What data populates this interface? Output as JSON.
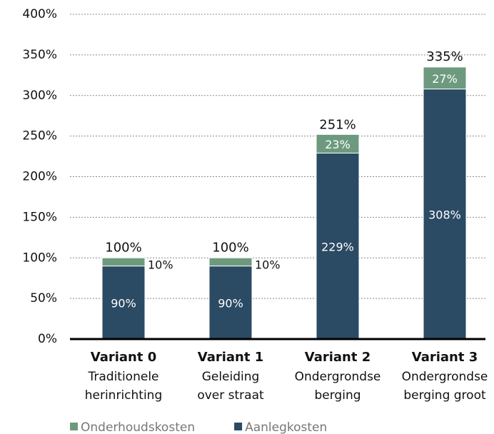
{
  "chart_data": {
    "type": "stacked_bar",
    "categories": [
      "Variant 0",
      "Variant 1",
      "Variant 2",
      "Variant 3"
    ],
    "category_details": [
      [
        "Traditionele",
        "herinrichting"
      ],
      [
        "Geleiding",
        "over straat"
      ],
      [
        "Ondergrondse",
        "berging"
      ],
      [
        "Ondergrondse",
        "berging groot"
      ]
    ],
    "series": [
      {
        "name": "Aanlegkosten",
        "color": "#2b4a63",
        "values": [
          90,
          90,
          229,
          308
        ],
        "value_labels": [
          "90%",
          "90%",
          "229%",
          "308%"
        ]
      },
      {
        "name": "Onderhoudskosten",
        "color": "#6d9a7e",
        "values": [
          10,
          10,
          23,
          27
        ],
        "value_labels": [
          "10%",
          "10%",
          "23%",
          "27%"
        ]
      }
    ],
    "totals": [
      100,
      100,
      251,
      335
    ],
    "total_labels": [
      "100%",
      "100%",
      "251%",
      "335%"
    ],
    "ylim": [
      0,
      400
    ],
    "yticks": [
      {
        "value": 0,
        "label": "0%"
      },
      {
        "value": 50,
        "label": "50%"
      },
      {
        "value": 100,
        "label": "100%"
      },
      {
        "value": 150,
        "label": "150%"
      },
      {
        "value": 200,
        "label": "200%"
      },
      {
        "value": 250,
        "label": "250%"
      },
      {
        "value": 300,
        "label": "300%"
      },
      {
        "value": 350,
        "label": "350%"
      },
      {
        "value": 400,
        "label": "400%"
      }
    ],
    "grid": true,
    "legend": "bottom-left"
  }
}
